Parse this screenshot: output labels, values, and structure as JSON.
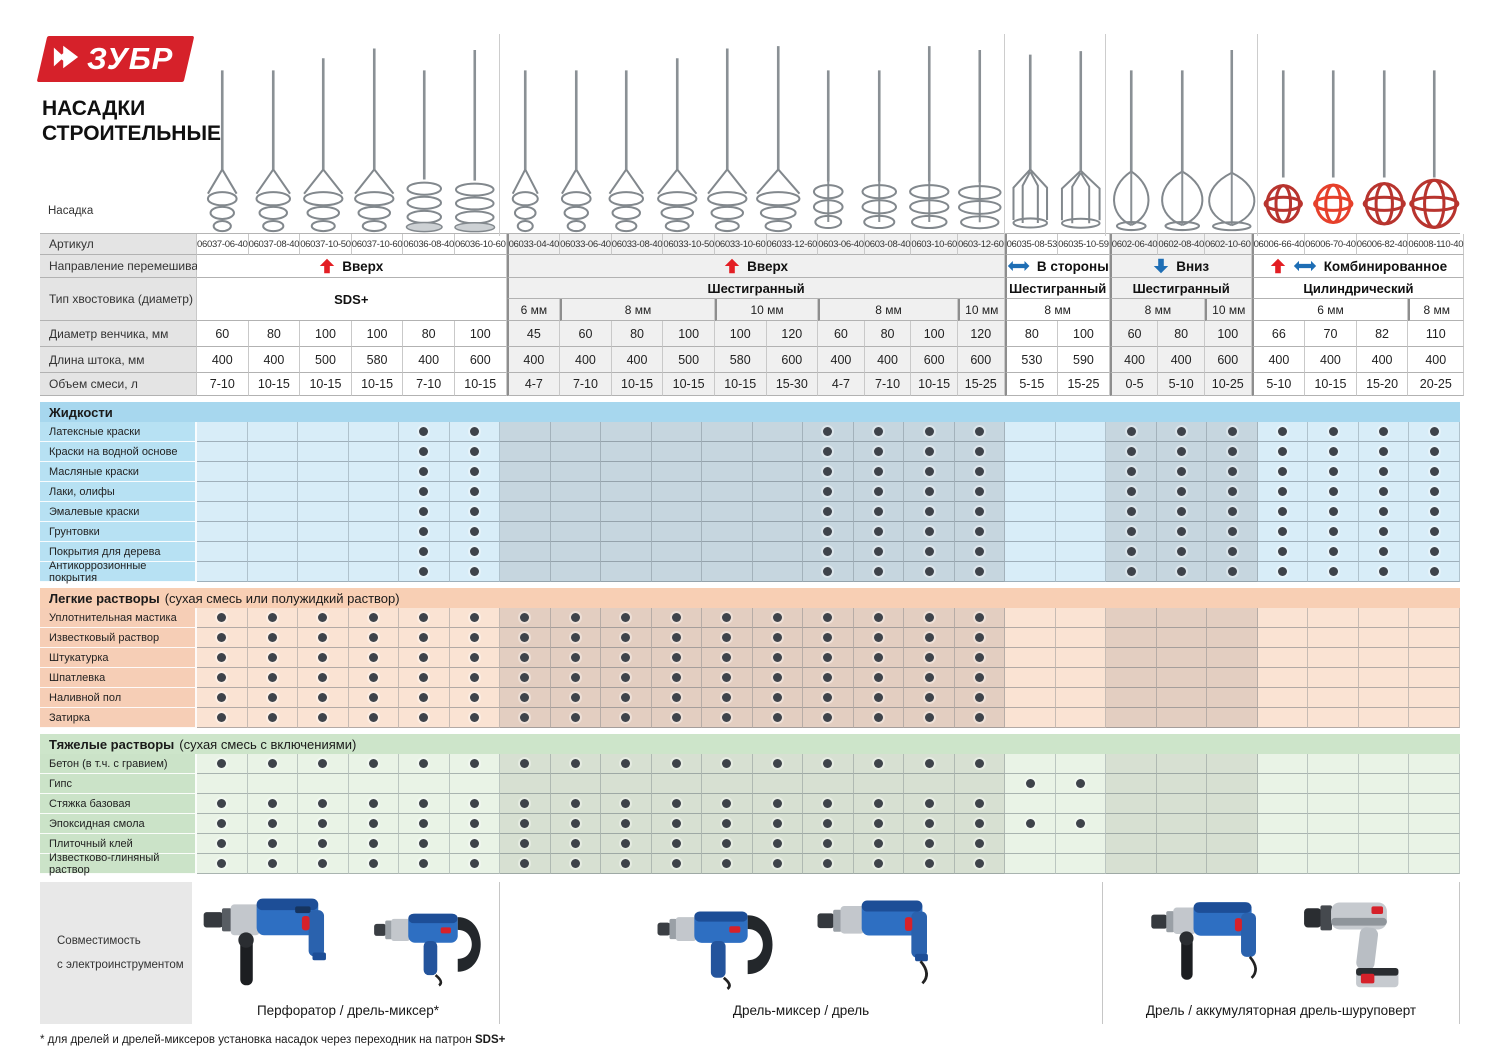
{
  "brand": {
    "logo_text": "ЗУБР",
    "red": "#d6212a"
  },
  "title_line1": "НАСАДКИ",
  "title_line2": "СТРОИТЕЛЬНЫЕ",
  "labels": {
    "nasadka": "Насадка",
    "articul": "Артикул",
    "direction": "Направление перемешивания",
    "shank": "Тип хвостовика (диаметр)",
    "diameter": "Диаметр венчика, мм",
    "length": "Длина штока, мм",
    "volume": "Объем смеси, л",
    "compatibility_line1": "Совместимость",
    "compatibility_line2": "с электроинструментом"
  },
  "arrow_colors": {
    "red": "#e31e24",
    "blue": "#1e6eb5"
  },
  "columns": [
    {
      "article": "06037-06-40",
      "diameter": "60",
      "length": "400",
      "volume": "7-10",
      "shape": "cage"
    },
    {
      "article": "06037-08-40",
      "diameter": "80",
      "length": "400",
      "volume": "10-15",
      "shape": "cage"
    },
    {
      "article": "06037-10-50",
      "diameter": "100",
      "length": "500",
      "volume": "10-15",
      "shape": "cage"
    },
    {
      "article": "06037-10-60",
      "diameter": "100",
      "length": "580",
      "volume": "10-15",
      "shape": "cage"
    },
    {
      "article": "06036-08-40",
      "diameter": "80",
      "length": "400",
      "volume": "7-10",
      "shape": "spiral_disc"
    },
    {
      "article": "06036-10-60",
      "diameter": "100",
      "length": "600",
      "volume": "10-15",
      "shape": "spiral_disc"
    },
    {
      "article": "06033-04-40",
      "diameter": "45",
      "length": "400",
      "volume": "4-7",
      "shape": "cage"
    },
    {
      "article": "06033-06-40",
      "diameter": "60",
      "length": "400",
      "volume": "7-10",
      "shape": "cage"
    },
    {
      "article": "06033-08-40",
      "diameter": "80",
      "length": "400",
      "volume": "10-15",
      "shape": "cage"
    },
    {
      "article": "06033-10-50",
      "diameter": "100",
      "length": "500",
      "volume": "10-15",
      "shape": "cage"
    },
    {
      "article": "06033-10-60",
      "diameter": "100",
      "length": "580",
      "volume": "10-15",
      "shape": "cage"
    },
    {
      "article": "06033-12-60",
      "diameter": "120",
      "length": "600",
      "volume": "15-30",
      "shape": "cage"
    },
    {
      "article": "0603-06-40",
      "diameter": "60",
      "length": "400",
      "volume": "4-7",
      "shape": "spiral"
    },
    {
      "article": "0603-08-40",
      "diameter": "80",
      "length": "400",
      "volume": "7-10",
      "shape": "spiral"
    },
    {
      "article": "0603-10-60",
      "diameter": "100",
      "length": "600",
      "volume": "10-15",
      "shape": "spiral"
    },
    {
      "article": "0603-12-60",
      "diameter": "120",
      "length": "600",
      "volume": "15-25",
      "shape": "spiral"
    },
    {
      "article": "06035-08-53",
      "diameter": "80",
      "length": "530",
      "volume": "5-15",
      "shape": "basket"
    },
    {
      "article": "06035-10-59",
      "diameter": "100",
      "length": "590",
      "volume": "15-25",
      "shape": "basket"
    },
    {
      "article": "0602-06-40",
      "diameter": "60",
      "length": "400",
      "volume": "0-5",
      "shape": "teardrop"
    },
    {
      "article": "0602-08-40",
      "diameter": "80",
      "length": "400",
      "volume": "5-10",
      "shape": "teardrop"
    },
    {
      "article": "0602-10-60",
      "diameter": "100",
      "length": "600",
      "volume": "10-25",
      "shape": "teardrop"
    },
    {
      "article": "06006-66-40",
      "diameter": "66",
      "length": "400",
      "volume": "5-10",
      "shape": "ball"
    },
    {
      "article": "06006-70-40",
      "diameter": "70",
      "length": "400",
      "volume": "10-15",
      "shape": "ball_bright"
    },
    {
      "article": "06006-82-40",
      "diameter": "82",
      "length": "400",
      "volume": "15-20",
      "shape": "ball"
    },
    {
      "article": "06008-110-40",
      "diameter": "110",
      "length": "400",
      "volume": "20-25",
      "shape": "ball"
    }
  ],
  "groups": [
    {
      "span": 6,
      "direction": "Вверх",
      "arrows": [
        "up"
      ],
      "shank": "SDS+",
      "sizes": [],
      "tint": "light"
    },
    {
      "span": 10,
      "direction": "Вверх",
      "arrows": [
        "up"
      ],
      "shank": "Шестигранный",
      "sizes": [
        {
          "label": "6 мм",
          "span": 1
        },
        {
          "label": "8 мм",
          "span": 3
        },
        {
          "label": "10 мм",
          "span": 2
        },
        {
          "label": "8 мм",
          "span": 3
        },
        {
          "label": "10 мм",
          "span": 1
        }
      ],
      "tint": "dark"
    },
    {
      "span": 2,
      "direction": "В стороны",
      "arrows": [
        "lr"
      ],
      "shank": "Шестигранный",
      "sizes": [
        {
          "label": "8 мм",
          "span": 2
        }
      ],
      "tint": "light"
    },
    {
      "span": 3,
      "direction": "Вниз",
      "arrows": [
        "down"
      ],
      "shank": "Шестигранный",
      "sizes": [
        {
          "label": "8 мм",
          "span": 2
        },
        {
          "label": "10 мм",
          "span": 1
        }
      ],
      "tint": "dark"
    },
    {
      "span": 4,
      "direction": "Комбинированное",
      "arrows": [
        "up",
        "lr"
      ],
      "shank": "Цилиндрический",
      "sizes": [
        {
          "label": "6 мм",
          "span": 3
        },
        {
          "label": "8 мм",
          "span": 1
        }
      ],
      "tint": "light"
    }
  ],
  "sections": [
    {
      "title": "Жидкости",
      "subtitle": "",
      "colors": {
        "header": "#a7d7ee",
        "label": "#b7e1f3",
        "light": "#d8edf8",
        "dark": "#c6d6df"
      },
      "rows": [
        {
          "label": "Латексные краски",
          "dots": "0000110000001111001111111"
        },
        {
          "label": "Краски на водной основе",
          "dots": "0000110000001111001111111"
        },
        {
          "label": "Масляные краски",
          "dots": "0000110000001111001111111"
        },
        {
          "label": "Лаки, олифы",
          "dots": "0000110000001111001111111"
        },
        {
          "label": "Эмалевые краски",
          "dots": "0000110000001111001111111"
        },
        {
          "label": "Грунтовки",
          "dots": "0000110000001111001111111"
        },
        {
          "label": "Покрытия для дерева",
          "dots": "0000110000001111001111111"
        },
        {
          "label": "Антикоррозионные покрытия",
          "dots": "0000110000001111001111111"
        }
      ]
    },
    {
      "title": "Легкие растворы",
      "subtitle": "(сухая смесь или полужидкий раствор)",
      "colors": {
        "header": "#f8cfb4",
        "label": "#f6ceb6",
        "light": "#fae3d3",
        "dark": "#e3cec1"
      },
      "rows": [
        {
          "label": "Уплотнительная мастика",
          "dots": "1111111111111111000000000"
        },
        {
          "label": "Известковый раствор",
          "dots": "1111111111111111000000000"
        },
        {
          "label": "Штукатурка",
          "dots": "1111111111111111000000000"
        },
        {
          "label": "Шпатлевка",
          "dots": "1111111111111111000000000"
        },
        {
          "label": "Наливной пол",
          "dots": "1111111111111111000000000"
        },
        {
          "label": "Затирка",
          "dots": "1111111111111111000000000"
        }
      ]
    },
    {
      "title": "Тяжелые растворы",
      "subtitle": "(сухая смесь с включениями)",
      "colors": {
        "header": "#cde5ca",
        "label": "#cbe3c8",
        "light": "#e9f3e6",
        "dark": "#d7e0d2"
      },
      "rows": [
        {
          "label": "Бетон (в т.ч. с гравием)",
          "dots": "1111111111111111000000000"
        },
        {
          "label": "Гипс",
          "dots": "0000000000000000110000000"
        },
        {
          "label": "Стяжка базовая",
          "dots": "1111111111111111000000000"
        },
        {
          "label": "Эпоксидная смола",
          "dots": "1111111111111111110000000"
        },
        {
          "label": "Плиточный клей",
          "dots": "1111111111111111000000000"
        },
        {
          "label": "Известково-глиняный раствор",
          "dots": "1111111111111111000000000"
        }
      ]
    }
  ],
  "compatibility": {
    "zones": [
      {
        "caption": "Перфоратор / дрель-миксер*"
      },
      {
        "caption": "Дрель-миксер / дрель"
      },
      {
        "caption": "Дрель / аккумуляторная дрель-шуруповерт"
      }
    ]
  },
  "footnote": {
    "text": "* для дрелей и дрелей-миксеров установка насадок через переходник на патрон ",
    "bold": "SDS+"
  }
}
